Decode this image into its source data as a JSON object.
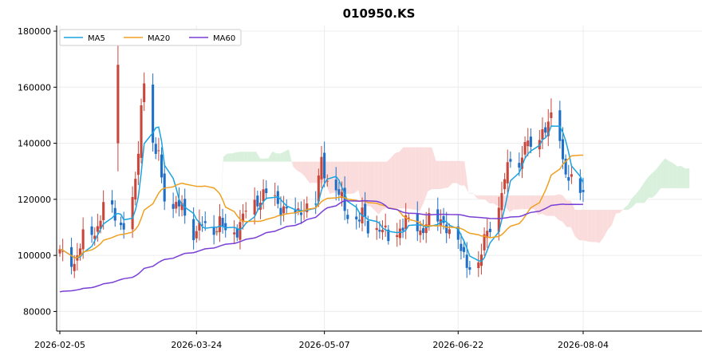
{
  "chart_data": {
    "type": "candlestick",
    "title": "010950.KS",
    "xlabel": "",
    "ylabel": "",
    "x_ticks": [
      "2026-02-05",
      "2026-03-24",
      "2026-05-07",
      "2026-06-22",
      "2026-08-04"
    ],
    "y_ticks": [
      80000,
      100000,
      120000,
      140000,
      160000,
      180000
    ],
    "ylim": [
      73000,
      182000
    ],
    "grid": true,
    "legend": {
      "position": "top-left",
      "entries": [
        {
          "name": "MA5",
          "color": "#1aa3e0"
        },
        {
          "name": "MA20",
          "color": "#f0a020"
        },
        {
          "name": "MA60",
          "color": "#7a3fd6"
        }
      ]
    },
    "colors": {
      "up": "#c8463a",
      "down": "#1f6fc8",
      "cloud_bull": "#d8f0dc",
      "cloud_bear": "#fbdcdc"
    },
    "anchor_points": [
      {
        "date": "2026-02-05",
        "close": 101000
      },
      {
        "date": "2026-02-23",
        "close": 141000
      },
      {
        "date": "2026-02-25",
        "high": 175000,
        "close": 168000
      },
      {
        "date": "2026-03-24",
        "close": 109000
      },
      {
        "date": "2026-05-07",
        "close": 123000
      },
      {
        "date": "2026-06-22",
        "close": 98000
      },
      {
        "date": "2026-07-24",
        "high": 156000,
        "close": 151000
      },
      {
        "date": "2026-08-04",
        "close": 122000
      }
    ]
  }
}
